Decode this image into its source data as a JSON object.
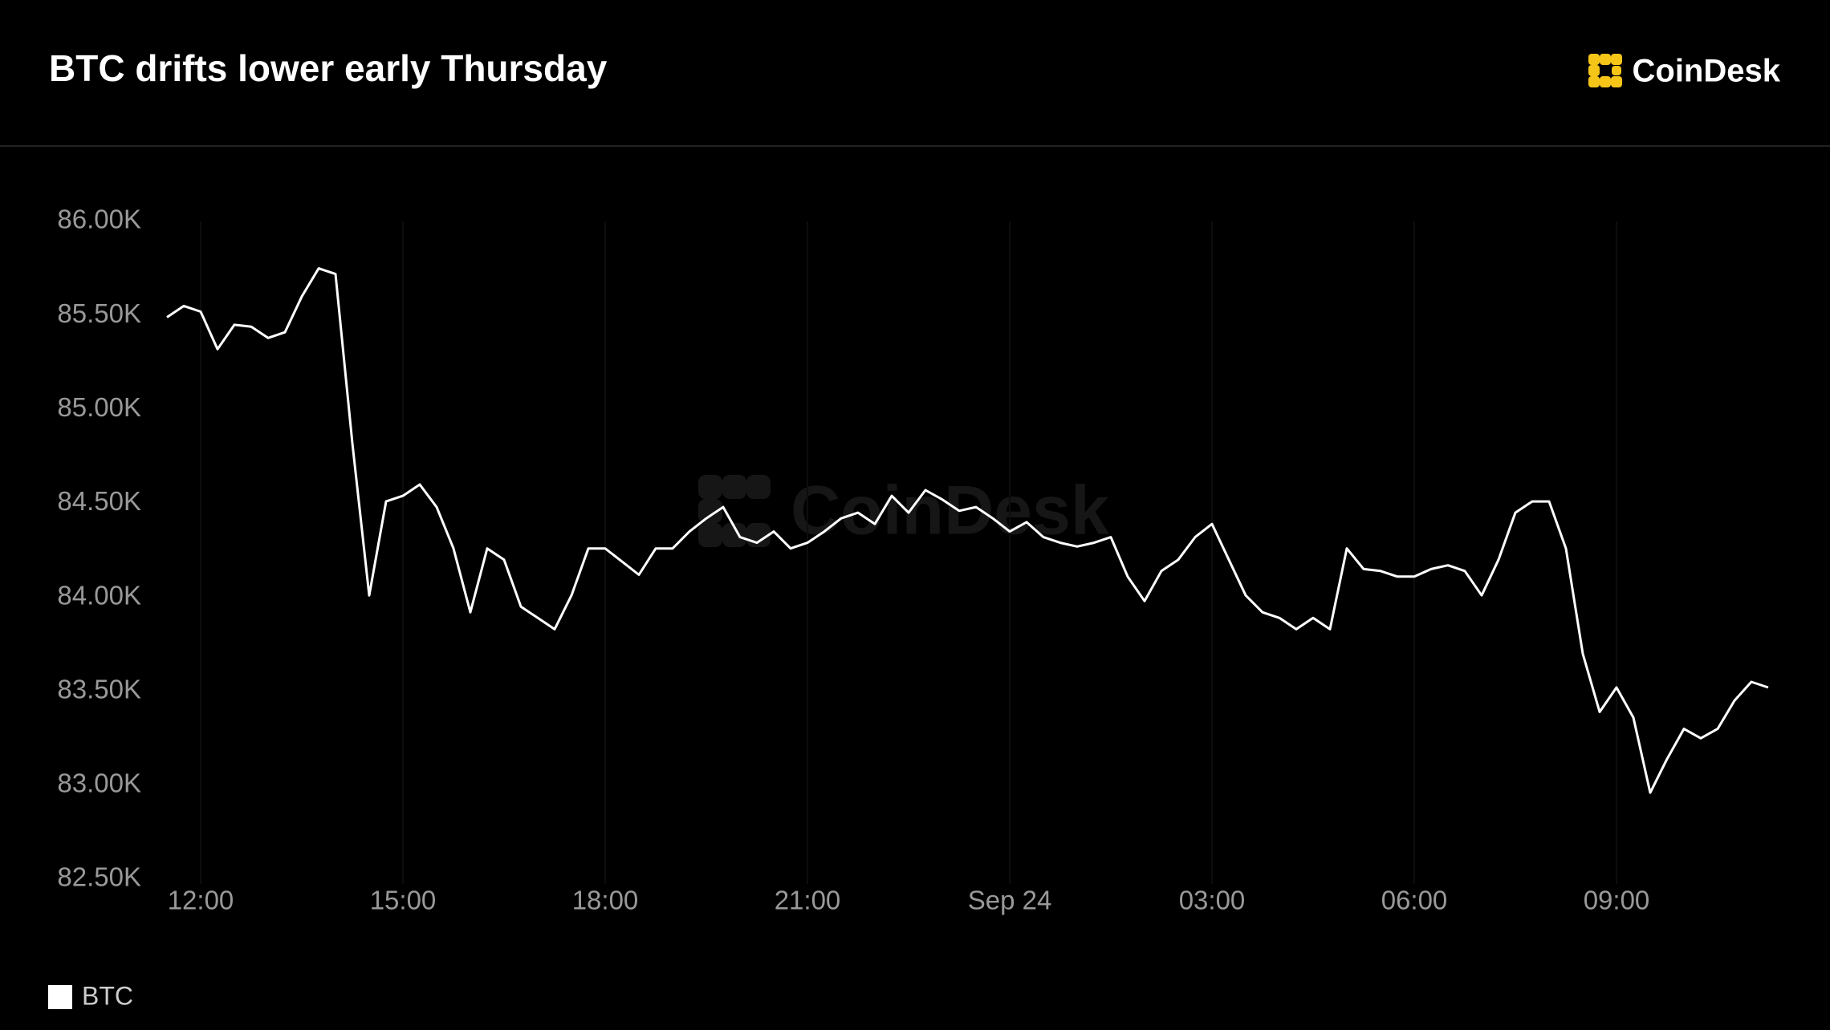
{
  "chart_data": {
    "type": "line",
    "title": "BTC drifts lower early Thursday",
    "logo": "CoinDesk",
    "categories": [
      null,
      null,
      "12:00",
      null,
      null,
      null,
      null,
      null,
      null,
      null,
      null,
      null,
      null,
      null,
      "15:00",
      null,
      null,
      null,
      null,
      null,
      null,
      null,
      null,
      null,
      null,
      null,
      "18:00",
      null,
      null,
      null,
      null,
      null,
      null,
      null,
      null,
      null,
      null,
      null,
      "21:00",
      null,
      null,
      null,
      null,
      null,
      null,
      null,
      null,
      null,
      null,
      null,
      "Sep 24",
      null,
      null,
      null,
      null,
      null,
      null,
      null,
      null,
      null,
      null,
      null,
      "03:00",
      null,
      null,
      null,
      null,
      null,
      null,
      null,
      null,
      null,
      null,
      null,
      "06:00",
      null,
      null,
      null,
      null,
      null,
      null,
      null,
      null,
      null,
      null,
      null,
      "09:00",
      null,
      null,
      null,
      null,
      null,
      null,
      null,
      null,
      null
    ],
    "series": [
      {
        "name": "BTC",
        "color": "#ffffff",
        "values": [
          85490,
          85550,
          85520,
          85320,
          85450,
          85440,
          85380,
          85410,
          85600,
          85750,
          85720,
          84820,
          84010,
          84510,
          84540,
          84600,
          84480,
          84260,
          83920,
          84260,
          84200,
          83950,
          83890,
          83830,
          84010,
          84260,
          84260,
          84190,
          84120,
          84260,
          84260,
          84350,
          84420,
          84480,
          84320,
          84290,
          84350,
          84260,
          84290,
          84350,
          84420,
          84450,
          84390,
          84540,
          84450,
          84570,
          84520,
          84460,
          84480,
          84420,
          84350,
          84400,
          84320,
          84290,
          84270,
          84290,
          84320,
          84110,
          83980,
          84140,
          84200,
          84320,
          84390,
          84200,
          84010,
          83920,
          83890,
          83830,
          83890,
          83830,
          84260,
          84150,
          84140,
          84110,
          84110,
          84150,
          84170,
          84140,
          84010,
          84200,
          84450,
          84510,
          84510,
          84260,
          83700,
          83390,
          83520,
          83360,
          82960,
          83140,
          83300,
          83250,
          83300,
          83450,
          83550,
          83520
        ]
      }
    ],
    "ylim": [
      82500,
      86000
    ],
    "yticks": [
      {
        "value": 82500,
        "label": "82.50K"
      },
      {
        "value": 83000,
        "label": "83.00K"
      },
      {
        "value": 83500,
        "label": "83.50K"
      },
      {
        "value": 84000,
        "label": "84.00K"
      },
      {
        "value": 84500,
        "label": "84.50K"
      },
      {
        "value": 85000,
        "label": "85.00K"
      },
      {
        "value": 85500,
        "label": "85.50K"
      },
      {
        "value": 86000,
        "label": "86.00K"
      }
    ],
    "grid": true
  }
}
